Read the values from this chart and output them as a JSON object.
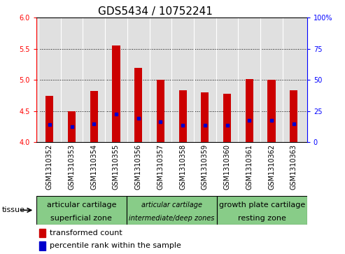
{
  "title": "GDS5434 / 10752241",
  "samples": [
    "GSM1310352",
    "GSM1310353",
    "GSM1310354",
    "GSM1310355",
    "GSM1310356",
    "GSM1310357",
    "GSM1310358",
    "GSM1310359",
    "GSM1310360",
    "GSM1310361",
    "GSM1310362",
    "GSM1310363"
  ],
  "red_values": [
    4.75,
    4.5,
    4.82,
    5.55,
    5.2,
    5.0,
    4.84,
    4.8,
    4.78,
    5.02,
    5.0,
    4.83
  ],
  "blue_values": [
    4.28,
    4.25,
    4.3,
    4.45,
    4.38,
    4.33,
    4.27,
    4.27,
    4.27,
    4.35,
    4.35,
    4.3
  ],
  "ylim": [
    4.0,
    6.0
  ],
  "y2lim": [
    0,
    100
  ],
  "yticks_left": [
    4.0,
    4.5,
    5.0,
    5.5,
    6.0
  ],
  "yticks_right": [
    0,
    25,
    50,
    75,
    100
  ],
  "bar_width": 0.35,
  "bar_color": "#cc0000",
  "blue_color": "#0000cc",
  "background_color": "#e0e0e0",
  "group_color": "#88cc88",
  "group_boundaries": [
    {
      "start": 0,
      "end": 4,
      "line1": "articular cartilage",
      "line2": "superficial zone",
      "italic": false,
      "fontsize": 8
    },
    {
      "start": 4,
      "end": 8,
      "line1": "articular cartilage",
      "line2": "intermediate/deep zones",
      "italic": true,
      "fontsize": 7
    },
    {
      "start": 8,
      "end": 12,
      "line1": "growth plate cartilage",
      "line2": "resting zone",
      "italic": false,
      "fontsize": 8
    }
  ],
  "tissue_label": "tissue",
  "title_fontsize": 11,
  "tick_fontsize": 7,
  "label_fontsize": 8,
  "legend_fontsize": 8
}
